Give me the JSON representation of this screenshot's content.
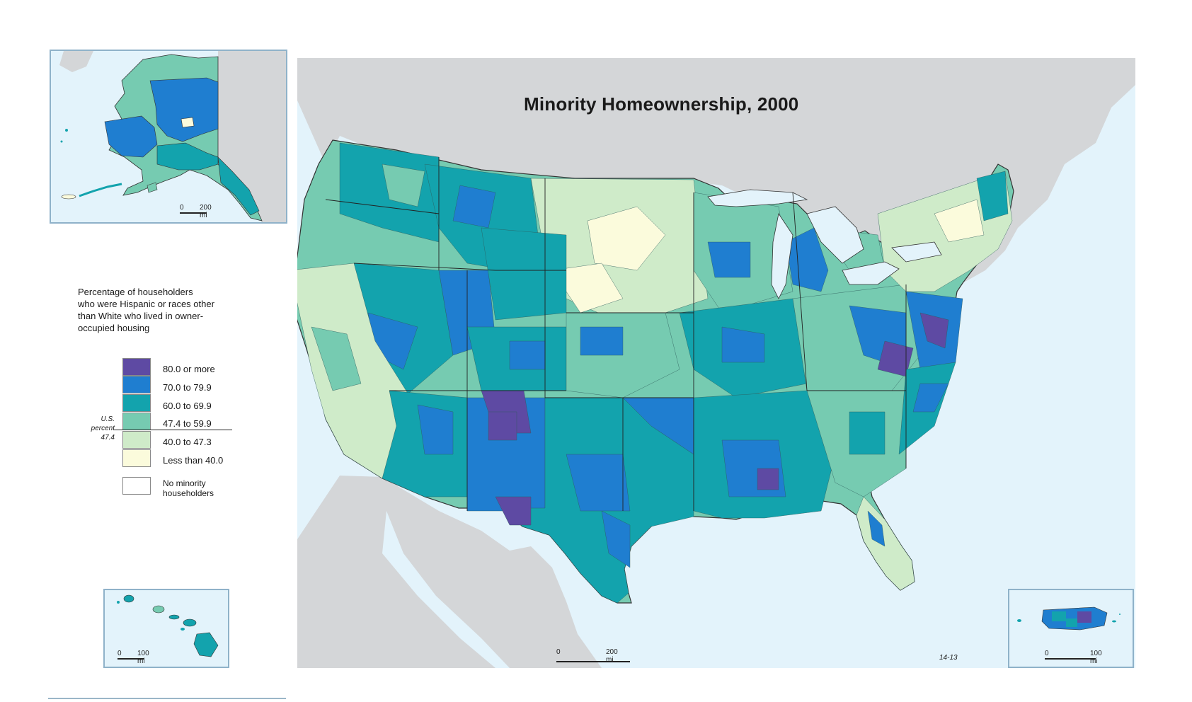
{
  "title": "Minority Homeownership, 2000",
  "legend": {
    "title_lines": [
      "Percentage of householders",
      "who were Hispanic or races other",
      "than White who lived in owner-",
      "occupied housing"
    ],
    "classes": [
      {
        "label": "80.0 or more",
        "color": "#5e4aa3"
      },
      {
        "label": "70.0 to 79.9",
        "color": "#1f7ed0"
      },
      {
        "label": "60.0 to 69.9",
        "color": "#13a3ad"
      },
      {
        "label": "47.4 to 59.9",
        "color": "#76cbb1"
      },
      {
        "label": "40.0 to 47.3",
        "color": "#cfebc9"
      },
      {
        "label": "Less than 40.0",
        "color": "#fbfbdc"
      },
      {
        "label": "No minority householders",
        "label_lines": [
          "No minority",
          "householders"
        ],
        "color": "#ffffff"
      }
    ],
    "us_percent_lines": [
      "U.S.",
      "percent",
      "47.4"
    ]
  },
  "insets": {
    "alaska": {
      "scale_zero": "0",
      "scale_label": "200 mi"
    },
    "hawaii": {
      "scale_zero": "0",
      "scale_label": "100 mi"
    },
    "puerto_rico": {
      "scale_zero": "0",
      "scale_label": "100 mi"
    }
  },
  "main_scale": {
    "zero": "0",
    "label": "200 mi"
  },
  "figure_code": "14-13",
  "colors": {
    "water": "#e3f3fb",
    "foreign_land": "#d4d6d8",
    "border": "#333333"
  }
}
